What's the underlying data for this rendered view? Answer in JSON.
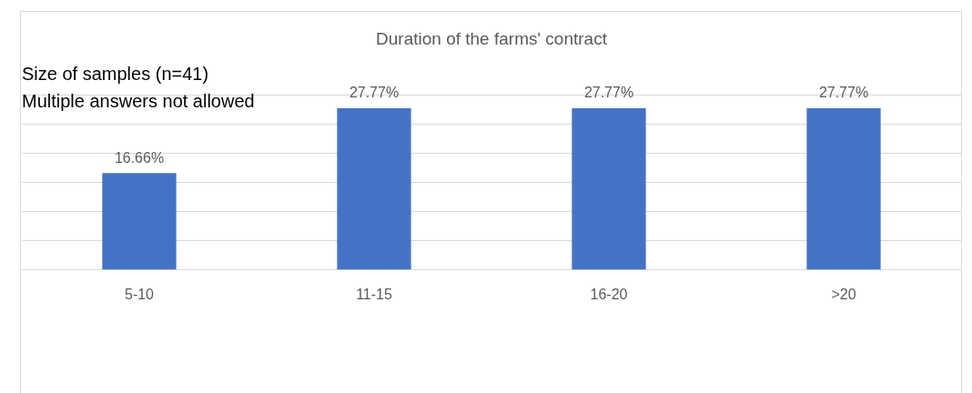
{
  "chart_data": {
    "type": "bar",
    "title": "Duration of the farms' contract",
    "categories": [
      "5-10",
      "11-15",
      "16-20",
      ">20"
    ],
    "values": [
      16.66,
      27.77,
      27.77,
      27.77
    ],
    "color": "#4472c4",
    "value_labels": [
      "16.66%",
      "27.77%",
      "27.77%",
      "27.77%"
    ],
    "ylim": [
      0,
      30
    ],
    "yticks": [
      {
        "value": 0,
        "label": null
      },
      {
        "value": 5,
        "label": null
      },
      {
        "value": 10,
        "label": null
      },
      {
        "value": 15,
        "label": null
      },
      {
        "value": 20,
        "label": null
      },
      {
        "value": 25,
        "label": null
      },
      {
        "value": 30,
        "label": null
      }
    ],
    "tick_labels": "x",
    "grid": "y",
    "legend": false,
    "annotations": [
      "Size of samples (n=41) Multiple answers not allowed"
    ]
  }
}
